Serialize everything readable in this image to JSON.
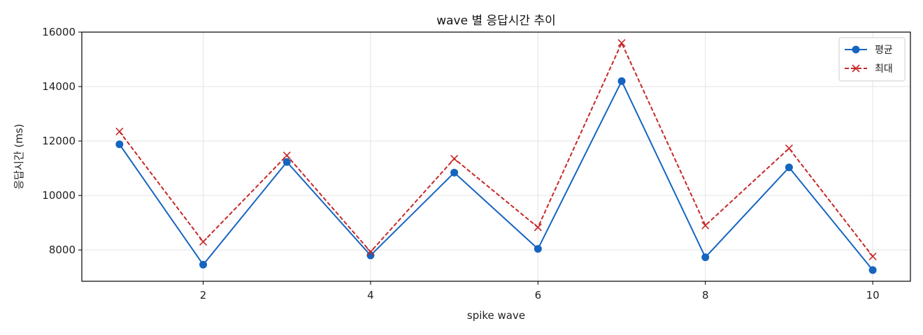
{
  "chart_data": {
    "type": "line",
    "title": "wave 별 응답시간 추이",
    "xlabel": "spike wave",
    "ylabel": "응답시간 (ms)",
    "x": [
      1,
      2,
      3,
      4,
      5,
      6,
      7,
      8,
      9,
      10
    ],
    "xlim": [
      0.55,
      10.45
    ],
    "ylim": [
      6850,
      16000
    ],
    "xticks": [
      2,
      4,
      6,
      8,
      10
    ],
    "yticks": [
      8000,
      10000,
      12000,
      14000,
      16000
    ],
    "grid": true,
    "legend_position": "top-right",
    "series": [
      {
        "name": "평균",
        "color": "#1565c0",
        "line_style": "solid",
        "marker": "circle",
        "values": [
          11880,
          7460,
          11230,
          7800,
          10840,
          8040,
          14200,
          7730,
          11030,
          7260
        ]
      },
      {
        "name": "최대",
        "color": "#c62828",
        "line_style": "dashed",
        "marker": "x",
        "values": [
          12350,
          8300,
          11470,
          7930,
          11350,
          8830,
          15600,
          8900,
          11730,
          7760
        ]
      }
    ]
  }
}
